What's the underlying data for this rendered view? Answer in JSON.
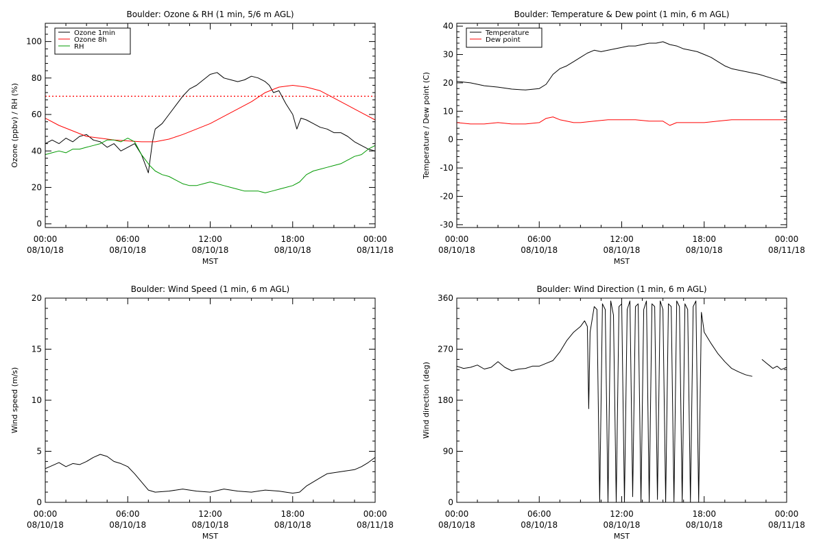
{
  "chart_data": [
    {
      "type": "line",
      "title": "Boulder: Ozone & RH (1 min, 5/6 m AGL)",
      "xlabel": "MST",
      "ylabel": "Ozone (ppbv) / RH (%)",
      "xlim": [
        0,
        24
      ],
      "ylim": [
        -2,
        110
      ],
      "xticks": [
        {
          "x": 0,
          "l1": "00:00",
          "l2": "08/10/18"
        },
        {
          "x": 6,
          "l1": "06:00",
          "l2": "08/10/18"
        },
        {
          "x": 12,
          "l1": "12:00",
          "l2": "08/10/18"
        },
        {
          "x": 18,
          "l1": "18:00",
          "l2": "08/10/18"
        },
        {
          "x": 24,
          "l1": "00:00",
          "l2": "08/11/18"
        }
      ],
      "yticks": [
        0,
        20,
        40,
        60,
        80,
        100
      ],
      "grid": false,
      "legend": "top-left",
      "reference_line": {
        "y": 70,
        "color": "#ff0000",
        "style": "dotted"
      },
      "series": [
        {
          "name": "Ozone 1min",
          "color": "#000000",
          "x": [
            0,
            0.5,
            1,
            1.5,
            2,
            2.5,
            3,
            3.5,
            4,
            4.5,
            5,
            5.5,
            6,
            6.5,
            7,
            7.3,
            7.5,
            7.8,
            8,
            8.5,
            9,
            9.5,
            10,
            10.5,
            11,
            11.5,
            12,
            12.5,
            13,
            13.5,
            14,
            14.5,
            15,
            15.5,
            16,
            16.3,
            16.6,
            17,
            17.5,
            18,
            18.3,
            18.6,
            19,
            19.5,
            20,
            20.5,
            21,
            21.5,
            22,
            22.5,
            23,
            23.5,
            24
          ],
          "y": [
            44,
            46,
            44,
            47,
            45,
            48,
            49,
            46,
            45,
            42,
            44,
            40,
            42,
            44,
            38,
            32,
            28,
            45,
            52,
            55,
            60,
            65,
            70,
            74,
            76,
            79,
            82,
            83,
            80,
            79,
            78,
            79,
            81,
            80,
            78,
            76,
            72,
            73,
            66,
            60,
            52,
            58,
            57,
            55,
            53,
            52,
            50,
            50,
            48,
            45,
            43,
            41,
            40
          ]
        },
        {
          "name": "Ozone 8h",
          "color": "#ff0000",
          "x": [
            0,
            1,
            2,
            3,
            4,
            5,
            6,
            7,
            8,
            9,
            10,
            11,
            12,
            13,
            14,
            15,
            16,
            17,
            18,
            19,
            20,
            21,
            22,
            23,
            24
          ],
          "y": [
            58,
            54,
            51,
            48,
            47,
            46,
            45.5,
            45,
            45,
            46.5,
            49,
            52,
            55,
            59,
            63,
            67,
            72,
            75,
            76,
            75,
            73,
            69,
            65,
            61,
            57
          ]
        },
        {
          "name": "RH",
          "color": "#009900",
          "x": [
            0,
            0.5,
            1,
            1.5,
            2,
            2.5,
            3,
            3.5,
            4,
            4.5,
            5,
            5.5,
            6,
            6.5,
            7,
            7.3,
            7.6,
            8,
            8.5,
            9,
            9.5,
            10,
            10.5,
            11,
            11.5,
            12,
            12.5,
            13,
            13.5,
            14,
            14.5,
            15,
            15.5,
            16,
            16.5,
            17,
            17.5,
            18,
            18.5,
            19,
            19.5,
            20,
            20.5,
            21,
            21.5,
            22,
            22.5,
            23,
            23.5,
            24
          ],
          "y": [
            38,
            39,
            40,
            39,
            41,
            41,
            42,
            43,
            44,
            46,
            46,
            45,
            47,
            45,
            38,
            35,
            32,
            29,
            27,
            26,
            24,
            22,
            21,
            21,
            22,
            23,
            22,
            21,
            20,
            19,
            18,
            18,
            18,
            17,
            18,
            19,
            20,
            21,
            23,
            27,
            29,
            30,
            31,
            32,
            33,
            35,
            37,
            38,
            41,
            43
          ]
        }
      ]
    },
    {
      "type": "line",
      "title": "Boulder: Temperature & Dew point (1 min, 6 m AGL)",
      "xlabel": "MST",
      "ylabel": "Temperature / Dew point (C)",
      "xlim": [
        0,
        24
      ],
      "ylim": [
        -31,
        41
      ],
      "xticks": [
        {
          "x": 0,
          "l1": "00:00",
          "l2": "08/10/18"
        },
        {
          "x": 6,
          "l1": "06:00",
          "l2": "08/10/18"
        },
        {
          "x": 12,
          "l1": "12:00",
          "l2": "08/10/18"
        },
        {
          "x": 18,
          "l1": "18:00",
          "l2": "08/10/18"
        },
        {
          "x": 24,
          "l1": "00:00",
          "l2": "08/11/18"
        }
      ],
      "yticks": [
        -30,
        -20,
        -10,
        0,
        10,
        20,
        30,
        40
      ],
      "grid": false,
      "legend": "top-left",
      "series": [
        {
          "name": "Temperature",
          "color": "#000000",
          "x": [
            0,
            1,
            2,
            3,
            4,
            5,
            6,
            6.5,
            7,
            7.5,
            8,
            8.5,
            9,
            9.5,
            10,
            10.5,
            11,
            11.5,
            12,
            12.5,
            13,
            13.5,
            14,
            14.5,
            15,
            15.5,
            16,
            16.5,
            17,
            17.5,
            18,
            18.5,
            19,
            19.5,
            20,
            21,
            22,
            23,
            24
          ],
          "y": [
            20.5,
            20,
            19,
            18.5,
            17.8,
            17.5,
            18,
            19.5,
            23,
            25,
            26,
            27.5,
            29,
            30.5,
            31.5,
            31,
            31.5,
            32,
            32.5,
            33,
            33,
            33.5,
            34,
            34,
            34.5,
            33.5,
            33,
            32,
            31.5,
            31,
            30,
            29,
            27.5,
            26,
            25,
            24,
            23,
            21.5,
            20
          ]
        },
        {
          "name": "Dew point",
          "color": "#ff0000",
          "x": [
            0,
            1,
            2,
            3,
            4,
            5,
            6,
            6.5,
            7,
            7.5,
            8,
            8.5,
            9,
            10,
            11,
            12,
            13,
            14,
            15,
            15.5,
            16,
            17,
            18,
            19,
            20,
            21,
            22,
            23,
            24
          ],
          "y": [
            6,
            5.5,
            5.5,
            6,
            5.5,
            5.5,
            6,
            7.5,
            8,
            7,
            6.5,
            6,
            6,
            6.5,
            7,
            7,
            7,
            6.5,
            6.5,
            5,
            6,
            6,
            6,
            6.5,
            7,
            7,
            7,
            7,
            7
          ]
        }
      ]
    },
    {
      "type": "line",
      "title": "Boulder: Wind Speed (1 min, 6 m AGL)",
      "xlabel": "MST",
      "ylabel": "Wind speed (m/s)",
      "xlim": [
        0,
        24
      ],
      "ylim": [
        0,
        20
      ],
      "xticks": [
        {
          "x": 0,
          "l1": "00:00",
          "l2": "08/10/18"
        },
        {
          "x": 6,
          "l1": "06:00",
          "l2": "08/10/18"
        },
        {
          "x": 12,
          "l1": "12:00",
          "l2": "08/10/18"
        },
        {
          "x": 18,
          "l1": "18:00",
          "l2": "08/10/18"
        },
        {
          "x": 24,
          "l1": "00:00",
          "l2": "08/11/18"
        }
      ],
      "yticks": [
        0,
        5,
        10,
        15,
        20
      ],
      "grid": false,
      "legend": "none",
      "series": [
        {
          "color": "#000000",
          "x": [
            0,
            0.5,
            1,
            1.5,
            2,
            2.5,
            3,
            3.5,
            4,
            4.5,
            5,
            5.5,
            6,
            6.5,
            7,
            7.5,
            8,
            9,
            10,
            11,
            12,
            13,
            14,
            15,
            16,
            17,
            17.5,
            18,
            18.5,
            19,
            19.5,
            20,
            20.5,
            21,
            21.5,
            22,
            22.5,
            23,
            23.5,
            24
          ],
          "y": [
            3.3,
            3.6,
            3.9,
            3.5,
            3.8,
            3.7,
            4,
            4.4,
            4.7,
            4.5,
            4,
            3.8,
            3.5,
            2.8,
            2,
            1.2,
            1,
            1.1,
            1.3,
            1.1,
            1,
            1.3,
            1.1,
            1,
            1.2,
            1.1,
            1,
            0.9,
            1,
            1.6,
            2,
            2.4,
            2.8,
            2.9,
            3,
            3.1,
            3.2,
            3.5,
            3.9,
            4.4
          ]
        }
      ]
    },
    {
      "type": "line",
      "title": "Boulder: Wind Direction (1 min, 6 m AGL)",
      "xlabel": "MST",
      "ylabel": "Wind direction (deg)",
      "xlim": [
        0,
        24
      ],
      "ylim": [
        0,
        360
      ],
      "xticks": [
        {
          "x": 0,
          "l1": "00:00",
          "l2": "08/10/18"
        },
        {
          "x": 6,
          "l1": "06:00",
          "l2": "08/10/18"
        },
        {
          "x": 12,
          "l1": "12:00",
          "l2": "08/10/18"
        },
        {
          "x": 18,
          "l1": "18:00",
          "l2": "08/10/18"
        },
        {
          "x": 24,
          "l1": "00:00",
          "l2": "08/11/18"
        }
      ],
      "yticks": [
        0,
        90,
        180,
        270,
        360
      ],
      "grid": false,
      "legend": "none",
      "series": [
        {
          "color": "#000000",
          "x": [
            0,
            0.5,
            1,
            1.5,
            2,
            2.5,
            3,
            3.5,
            4,
            4.5,
            5,
            5.5,
            6,
            6.5,
            7,
            7.5,
            8,
            8.5,
            9,
            9.3,
            9.5,
            9.6,
            9.7,
            10,
            10.2,
            10.4,
            10.6,
            10.8,
            11,
            11.2,
            11.4,
            11.6,
            11.8,
            12,
            12.2,
            12.4,
            12.6,
            12.8,
            13,
            13.2,
            13.4,
            13.6,
            13.8,
            14,
            14.2,
            14.4,
            14.6,
            14.8,
            15,
            15.2,
            15.4,
            15.6,
            15.8,
            16,
            16.2,
            16.4,
            16.6,
            16.8,
            17,
            17.2,
            17.4,
            17.6,
            17.8,
            18,
            18.5,
            19,
            19.5,
            20,
            20.5,
            21,
            21.5
          ],
          "y": [
            240,
            236,
            238,
            242,
            235,
            238,
            248,
            238,
            232,
            235,
            236,
            240,
            240,
            245,
            250,
            265,
            285,
            300,
            310,
            320,
            310,
            165,
            300,
            345,
            340,
            0,
            350,
            340,
            0,
            355,
            330,
            0,
            345,
            350,
            0,
            340,
            355,
            10,
            345,
            350,
            0,
            340,
            355,
            0,
            350,
            345,
            5,
            355,
            340,
            0,
            350,
            345,
            0,
            355,
            345,
            0,
            350,
            340,
            0,
            345,
            355,
            0,
            335,
            300,
            280,
            262,
            248,
            236,
            230,
            225,
            222
          ]
        },
        {
          "color": "#000000",
          "x": [
            22.2,
            22.5,
            22.8,
            23,
            23.3,
            23.6,
            24
          ],
          "y": [
            252,
            246,
            240,
            236,
            240,
            234,
            238
          ]
        }
      ]
    }
  ]
}
